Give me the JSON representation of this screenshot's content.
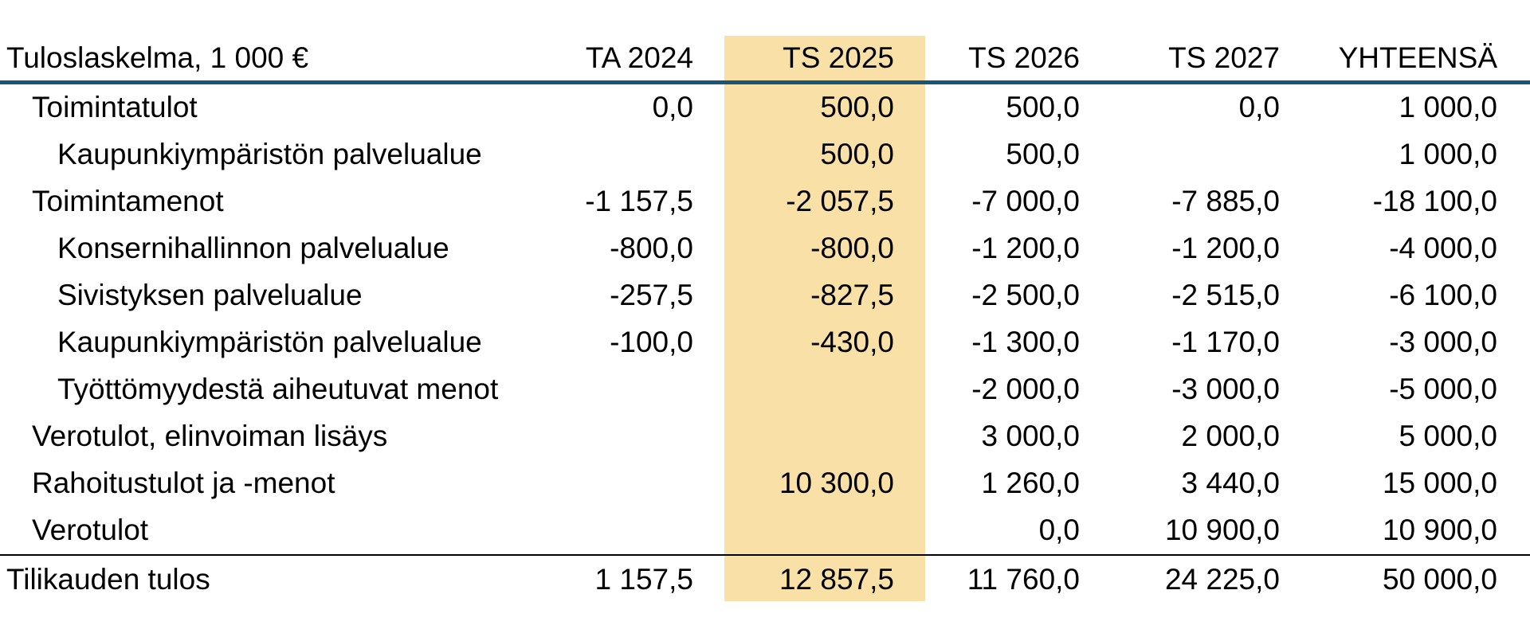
{
  "table": {
    "title": "Tuloslaskelma, 1 000 €",
    "columns": [
      "TA 2024",
      "TS 2025",
      "TS 2026",
      "TS 2027",
      "YHTEENSÄ"
    ],
    "highlight_color": "#f8e0a7",
    "header_rule_color": "#1a5577",
    "rows": [
      {
        "label": "Toimintatulot",
        "values": [
          "0,0",
          "500,0",
          "500,0",
          "0,0",
          "1 000,0"
        ]
      },
      {
        "label": "Kaupunkiympäristön palvelualue",
        "values": [
          "",
          "500,0",
          "500,0",
          "",
          "1 000,0"
        ]
      },
      {
        "label": "Toimintamenot",
        "values": [
          "-1 157,5",
          "-2 057,5",
          "-7 000,0",
          "-7 885,0",
          "-18 100,0"
        ]
      },
      {
        "label": "Konsernihallinnon palvelualue",
        "values": [
          "-800,0",
          "-800,0",
          "-1 200,0",
          "-1 200,0",
          "-4 000,0"
        ]
      },
      {
        "label": "Sivistyksen palvelualue",
        "values": [
          "-257,5",
          "-827,5",
          "-2 500,0",
          "-2 515,0",
          "-6 100,0"
        ]
      },
      {
        "label": "Kaupunkiympäristön palvelualue",
        "values": [
          "-100,0",
          "-430,0",
          "-1 300,0",
          "-1 170,0",
          "-3 000,0"
        ]
      },
      {
        "label": "Työttömyydestä aiheutuvat menot",
        "values": [
          "",
          "",
          "-2 000,0",
          "-3 000,0",
          "-5 000,0"
        ]
      },
      {
        "label": "Verotulot, elinvoiman lisäys",
        "values": [
          "",
          "",
          "3 000,0",
          "2 000,0",
          "5 000,0"
        ]
      },
      {
        "label": "Rahoitustulot ja -menot",
        "values": [
          "",
          "10 300,0",
          "1 260,0",
          "3 440,0",
          "15 000,0"
        ]
      },
      {
        "label": "Verotulot",
        "values": [
          "",
          "",
          "0,0",
          "10 900,0",
          "10 900,0"
        ]
      }
    ],
    "total": {
      "label": "Tilikauden tulos",
      "values": [
        "1 157,5",
        "12 857,5",
        "11 760,0",
        "24 225,0",
        "50 000,0"
      ]
    }
  }
}
